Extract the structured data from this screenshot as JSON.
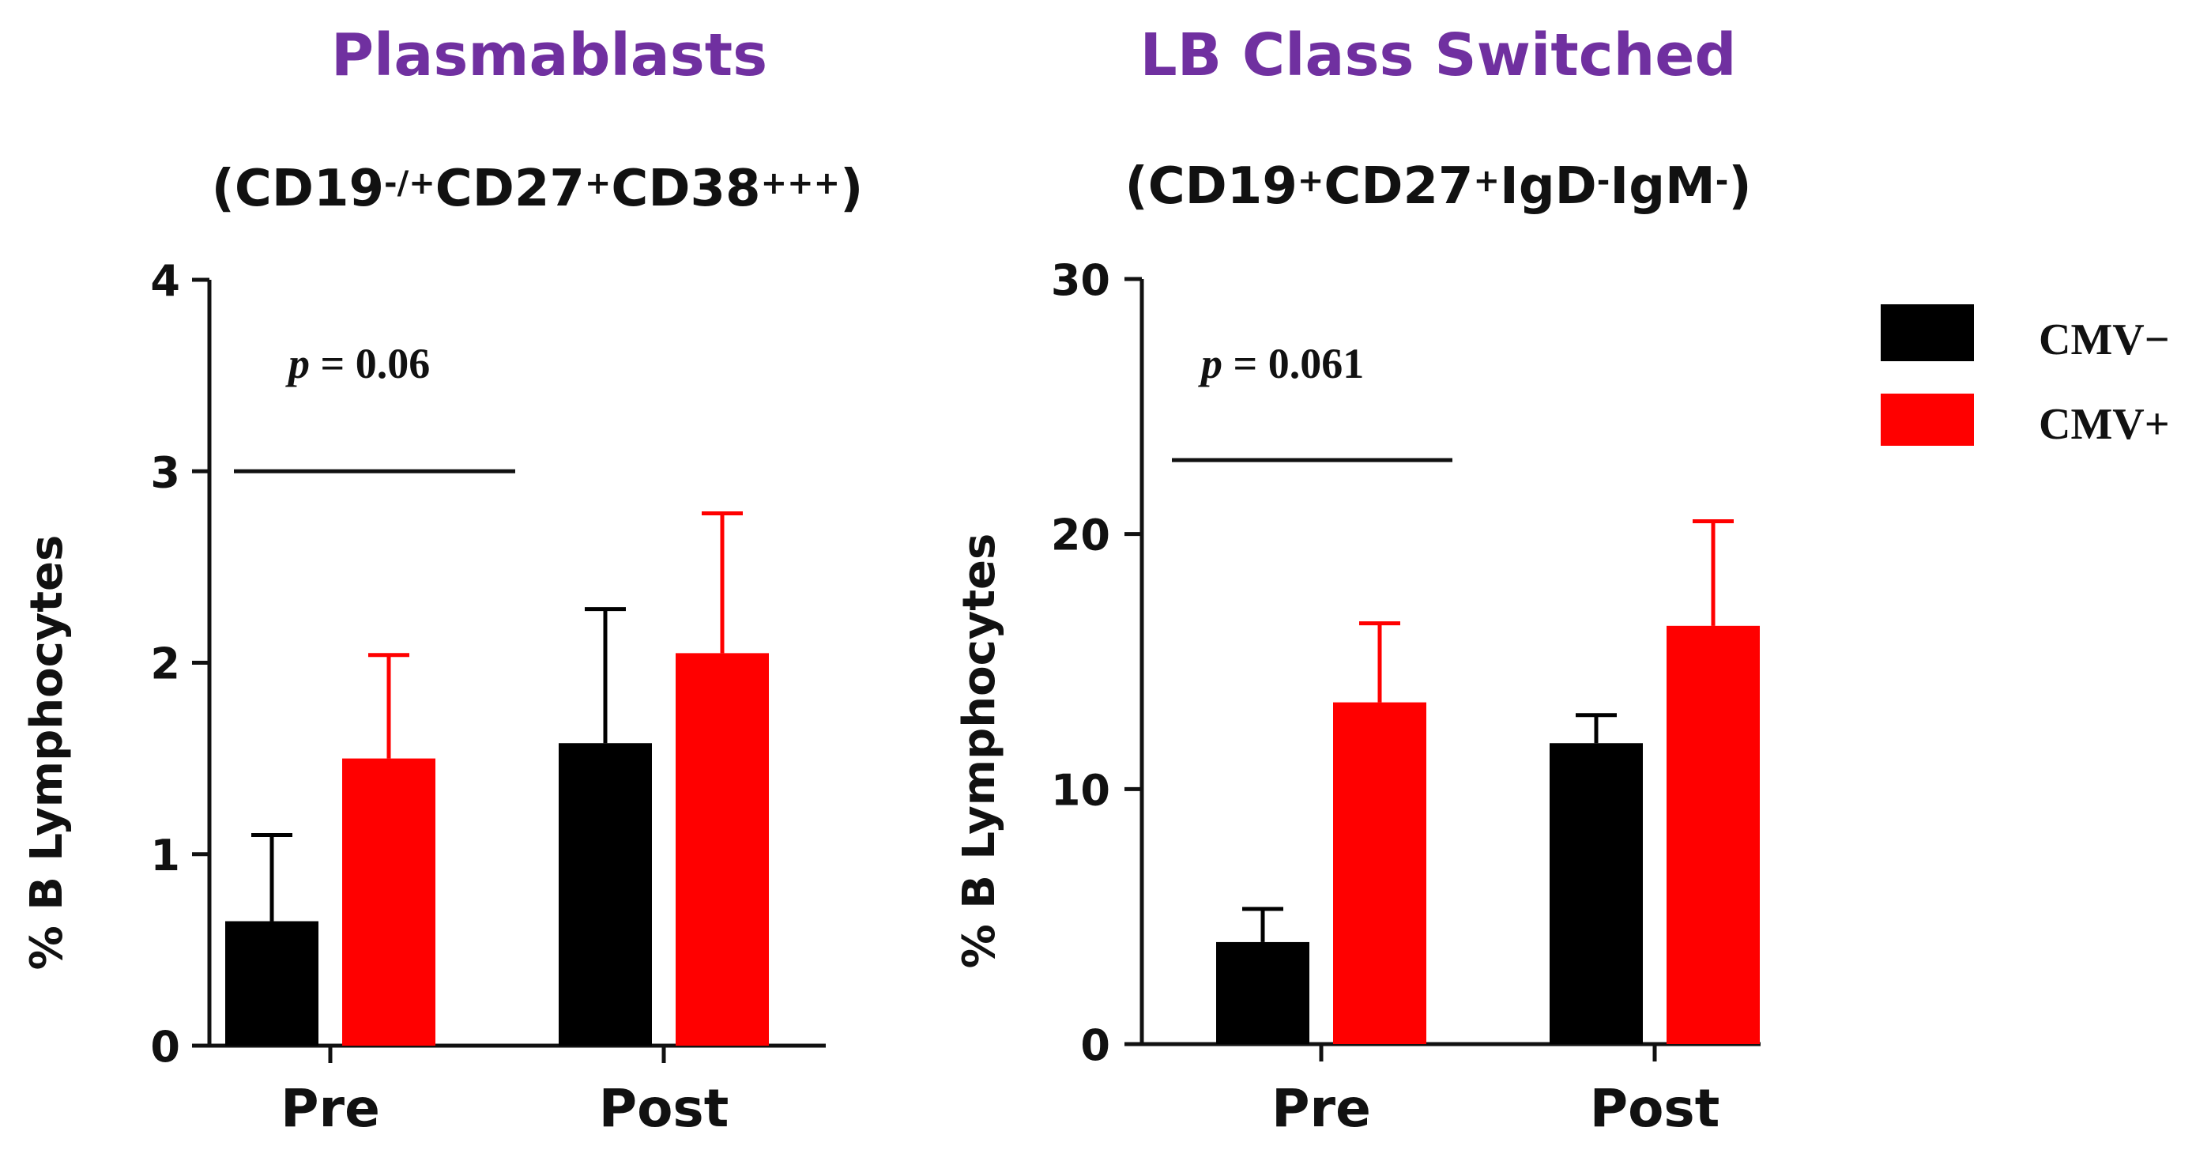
{
  "colors": {
    "cmv_neg": "#000000",
    "cmv_pos": "#ff0000",
    "title": "#7030a0",
    "axis": "#111111"
  },
  "legend": [
    {
      "label": "CMV−",
      "series": "cmv_neg"
    },
    {
      "label": "CMV+",
      "series": "cmv_pos"
    }
  ],
  "chart_data": [
    {
      "type": "bar",
      "title": "Plasmablasts",
      "subtitle": {
        "parts": [
          {
            "t": "(CD19"
          },
          {
            "t": "-/+",
            "sup": true
          },
          {
            "t": "CD27"
          },
          {
            "t": "+",
            "sup": true
          },
          {
            "t": "CD38"
          },
          {
            "t": "+++",
            "sup": true
          },
          {
            "t": ")"
          }
        ]
      },
      "ylabel": "% B Lymphocytes",
      "ylim": [
        0,
        4
      ],
      "yticks": [
        0,
        1,
        2,
        3,
        4
      ],
      "categories": [
        "Pre",
        "Post"
      ],
      "series": [
        {
          "name": "CMV−",
          "key": "cmv_neg",
          "values": [
            0.65,
            1.58
          ],
          "errors": [
            0.45,
            0.7
          ]
        },
        {
          "name": "CMV+",
          "key": "cmv_pos",
          "values": [
            1.5,
            2.05
          ],
          "errors": [
            0.54,
            0.73
          ]
        }
      ],
      "annotation": {
        "p_label": "p",
        "p_text": " = 0.06",
        "line_y": 3.0
      }
    },
    {
      "type": "bar",
      "title": "LB Class Switched",
      "subtitle": {
        "parts": [
          {
            "t": "(CD19"
          },
          {
            "t": "+",
            "sup": true
          },
          {
            "t": "CD27"
          },
          {
            "t": "+",
            "sup": true
          },
          {
            "t": "IgD"
          },
          {
            "t": "-",
            "sup": true
          },
          {
            "t": "IgM"
          },
          {
            "t": "-",
            "sup": true
          },
          {
            "t": ")"
          }
        ]
      },
      "ylabel": "% B Lymphocytes",
      "ylim": [
        0,
        30
      ],
      "yticks": [
        0,
        10,
        20,
        30
      ],
      "categories": [
        "Pre",
        "Post"
      ],
      "series": [
        {
          "name": "CMV−",
          "key": "cmv_neg",
          "values": [
            4.0,
            11.8
          ],
          "errors": [
            1.3,
            1.1
          ]
        },
        {
          "name": "CMV+",
          "key": "cmv_pos",
          "values": [
            13.4,
            16.4
          ],
          "errors": [
            3.1,
            4.1
          ]
        }
      ],
      "annotation": {
        "p_label": "p",
        "p_text": " = 0.061",
        "line_y": 22.9
      }
    }
  ]
}
